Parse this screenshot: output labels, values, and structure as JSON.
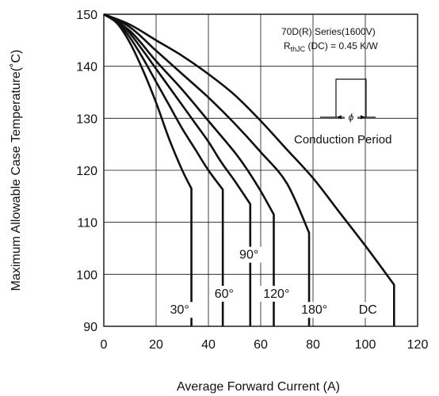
{
  "chart_data": {
    "type": "line",
    "xlabel": "Average Forward Current (A)",
    "ylabel": "Maximum Allowable Case Temperature(˚C)",
    "xlim": [
      0,
      120
    ],
    "ylim": [
      90,
      150
    ],
    "xticks": [
      0,
      20,
      40,
      60,
      80,
      100,
      120
    ],
    "yticks": [
      90,
      100,
      110,
      120,
      130,
      140,
      150
    ],
    "grid": true,
    "annotation": {
      "series_line": "70D(R) Series(1600V)",
      "rth_prefix": "R",
      "rth_subscript": "thJC",
      "rth_suffix": " (DC) = 0.45 K/W",
      "phi_symbol": "ϕ",
      "conduction_label": "Conduction Period"
    },
    "series": [
      {
        "name": "30°",
        "label_pos": [
          29,
          92.4
        ],
        "x": [
          0,
          5,
          10,
          15,
          20,
          25,
          30,
          33.5,
          33.5
        ],
        "y": [
          150,
          148.3,
          144.5,
          139.2,
          133.0,
          126.0,
          120.0,
          116.5,
          90
        ]
      },
      {
        "name": "60°",
        "label_pos": [
          46,
          95.5
        ],
        "x": [
          0,
          5,
          10,
          15,
          20,
          25,
          30,
          35,
          40,
          45.5,
          45.5
        ],
        "y": [
          150,
          148.6,
          145.5,
          141.5,
          137.0,
          132.5,
          128.0,
          124.0,
          120.0,
          116.3,
          90
        ]
      },
      {
        "name": "90°",
        "label_pos": [
          55.5,
          103
        ],
        "x": [
          0,
          5,
          10,
          15,
          20,
          25,
          30,
          35,
          40,
          45,
          50,
          56,
          56
        ],
        "y": [
          150,
          148.8,
          146.3,
          143.0,
          139.5,
          136.0,
          132.5,
          129.0,
          125.5,
          121.5,
          118.0,
          113.5,
          90
        ]
      },
      {
        "name": "120°",
        "label_pos": [
          66,
          95.5
        ],
        "x": [
          0,
          10,
          20,
          30,
          40,
          50,
          55,
          60,
          65,
          65
        ],
        "y": [
          150,
          146.8,
          141.0,
          135.5,
          129.5,
          123.5,
          120.0,
          116.0,
          111.5,
          90
        ]
      },
      {
        "name": "180°",
        "label_pos": [
          80.5,
          92.4
        ],
        "x": [
          0,
          10,
          20,
          30,
          40,
          50,
          60,
          70,
          78.5,
          78.5
        ],
        "y": [
          150,
          147.5,
          143.0,
          138.5,
          134.0,
          129.0,
          123.5,
          117.5,
          108.0,
          90
        ]
      },
      {
        "name": "DC",
        "label_pos": [
          101,
          92.4
        ],
        "x": [
          0,
          10,
          20,
          30,
          40,
          50,
          60,
          70,
          80,
          90,
          100,
          111,
          111
        ],
        "y": [
          150,
          148.0,
          145.0,
          142.0,
          138.5,
          134.5,
          129.5,
          124.0,
          118.5,
          112.0,
          105.5,
          98.0,
          90
        ]
      }
    ]
  }
}
